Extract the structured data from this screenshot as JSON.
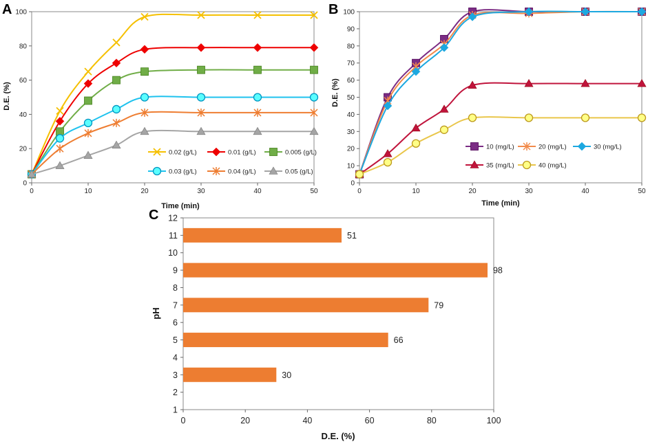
{
  "chart_data": [
    {
      "panel": "A",
      "type": "line",
      "xlabel": "Time (min)",
      "ylabel": "D.E. (%)",
      "xlim": [
        0,
        50
      ],
      "ylim": [
        0,
        100
      ],
      "xticks": [
        0,
        10,
        20,
        30,
        40,
        50
      ],
      "yticks": [
        0,
        20,
        40,
        60,
        80,
        100
      ],
      "grid": false,
      "legend_position": "bottom-right",
      "x": [
        0,
        5,
        10,
        15,
        20,
        30,
        40,
        50
      ],
      "series": [
        {
          "name": "0.02 (g/L)",
          "marker": "x",
          "color": "#f5c000",
          "values": [
            5,
            42,
            65,
            82,
            97,
            98,
            98,
            98
          ]
        },
        {
          "name": "0.01 (g/L)",
          "marker": "diamond",
          "color": "#ee0000",
          "values": [
            5,
            36,
            58,
            70,
            78,
            79,
            79,
            79
          ]
        },
        {
          "name": "0.005 (g/L)",
          "marker": "square",
          "color": "#70ad47",
          "values": [
            5,
            30,
            48,
            60,
            65,
            66,
            66,
            66
          ]
        },
        {
          "name": "0.03 (g/L)",
          "marker": "circle",
          "color": "#1ec2ee",
          "values": [
            5,
            26,
            35,
            43,
            50,
            50,
            50,
            50
          ]
        },
        {
          "name": "0.04 (g/L)",
          "marker": "asterisk",
          "color": "#ee7d31",
          "values": [
            5,
            20,
            29,
            35,
            41,
            41,
            41,
            41
          ]
        },
        {
          "name": "0.05 (g/L)",
          "marker": "triangle",
          "color": "#a5a5a5",
          "values": [
            5,
            10,
            16,
            22,
            30,
            30,
            30,
            30
          ]
        }
      ]
    },
    {
      "panel": "B",
      "type": "line",
      "xlabel": "Time (min)",
      "ylabel": "D.E. (%)",
      "xlim": [
        0,
        50
      ],
      "ylim": [
        0,
        100
      ],
      "xticks": [
        0,
        10,
        20,
        30,
        40,
        50
      ],
      "yticks": [
        0,
        10,
        20,
        30,
        40,
        50,
        60,
        70,
        80,
        90,
        100
      ],
      "grid": false,
      "legend_position": "bottom-right",
      "x": [
        0,
        5,
        10,
        15,
        20,
        30,
        40,
        50
      ],
      "series": [
        {
          "name": "10 (mg/L)",
          "marker": "square",
          "color": "#7b2c84",
          "values": [
            5,
            50,
            70,
            84,
            100,
            100,
            100,
            100
          ]
        },
        {
          "name": "20 (mg/L)",
          "marker": "asterisk",
          "color": "#f28a4a",
          "values": [
            5,
            48,
            68,
            81,
            98,
            99,
            100,
            100
          ]
        },
        {
          "name": "30 (mg/L)",
          "marker": "diamond",
          "color": "#1ca8e0",
          "values": [
            5,
            45,
            65,
            79,
            97,
            100,
            100,
            100
          ]
        },
        {
          "name": "35 (mg/L)",
          "marker": "triangle",
          "color": "#c0143c",
          "values": [
            5,
            17,
            32,
            43,
            57,
            58,
            58,
            58
          ]
        },
        {
          "name": "40 (mg/L)",
          "marker": "circle",
          "color": "#e9c64a",
          "values": [
            5,
            12,
            23,
            31,
            38,
            38,
            38,
            38
          ]
        }
      ]
    },
    {
      "panel": "C",
      "type": "bar",
      "orientation": "horizontal",
      "xlabel": "D.E. (%)",
      "ylabel": "pH",
      "xlim": [
        0,
        100
      ],
      "ylim": [
        1,
        12
      ],
      "xticks": [
        0,
        20,
        40,
        60,
        80,
        100
      ],
      "yticks": [
        1,
        2,
        3,
        4,
        5,
        6,
        7,
        8,
        9,
        10,
        11,
        12
      ],
      "color": "#ed7d31",
      "categories": [
        3,
        5,
        7,
        9,
        11
      ],
      "values": [
        30,
        66,
        79,
        98,
        51
      ]
    }
  ]
}
